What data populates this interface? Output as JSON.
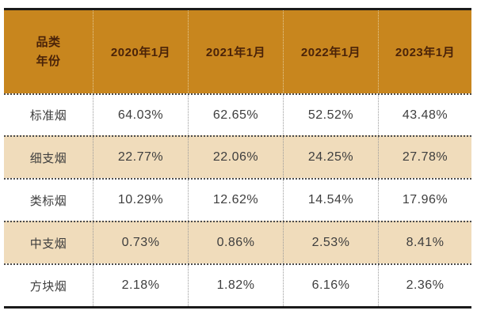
{
  "colors": {
    "header_bg": "#C8861E",
    "header_text": "#4A2309",
    "stripe_bg": "#F0DCBB",
    "body_text": "#3E3E3E",
    "border_dark": "#1A1A1A",
    "grid_dot": "#9A9A9A",
    "header_dot": "#E5CD9A",
    "row_sep": "#4C4C4C"
  },
  "table": {
    "corner": {
      "top": "品类",
      "bottom": "年份"
    },
    "columns": [
      "2020年1月",
      "2021年1月",
      "2022年1月",
      "2023年1月"
    ],
    "rows": [
      {
        "label": "标准烟",
        "values": [
          "64.03%",
          "62.65%",
          "52.52%",
          "43.48%"
        ]
      },
      {
        "label": "细支烟",
        "values": [
          "22.77%",
          "22.06%",
          "24.25%",
          "27.78%"
        ]
      },
      {
        "label": "类标烟",
        "values": [
          "10.29%",
          "12.62%",
          "14.54%",
          "17.96%"
        ]
      },
      {
        "label": "中支烟",
        "values": [
          "0.73%",
          "0.86%",
          "2.53%",
          "8.41%"
        ]
      },
      {
        "label": "方块烟",
        "values": [
          "2.18%",
          "1.82%",
          "6.16%",
          "2.36%"
        ]
      }
    ]
  },
  "chart_data": {
    "type": "table",
    "corner_labels": {
      "rows_dimension": "品类",
      "columns_dimension": "年份"
    },
    "categories": [
      "2020年1月",
      "2021年1月",
      "2022年1月",
      "2023年1月"
    ],
    "series": [
      {
        "name": "标准烟",
        "values": [
          64.03,
          62.65,
          52.52,
          43.48
        ]
      },
      {
        "name": "细支烟",
        "values": [
          22.77,
          22.06,
          24.25,
          27.78
        ]
      },
      {
        "name": "类标烟",
        "values": [
          10.29,
          12.62,
          14.54,
          17.96
        ]
      },
      {
        "name": "中支烟",
        "values": [
          0.73,
          0.86,
          2.53,
          8.41
        ]
      },
      {
        "name": "方块烟",
        "values": [
          2.18,
          1.82,
          6.16,
          2.36
        ]
      }
    ],
    "unit": "%",
    "title": ""
  }
}
